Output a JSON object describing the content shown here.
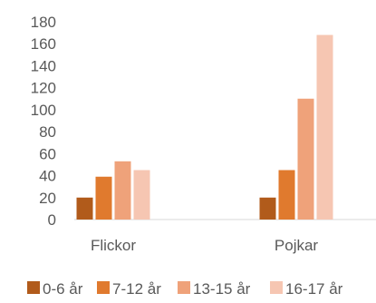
{
  "chart_data": {
    "type": "bar",
    "title": "",
    "xlabel": "",
    "ylabel": "",
    "categories": [
      "Flickor",
      "Pojkar"
    ],
    "series": [
      {
        "name": "0-6 år",
        "values": [
          20,
          20
        ],
        "color": "#b15b1b"
      },
      {
        "name": "7-12 år",
        "values": [
          39,
          45
        ],
        "color": "#e07a2e"
      },
      {
        "name": "13-15 år",
        "values": [
          53,
          110
        ],
        "color": "#efa27a"
      },
      {
        "name": "16-17 år",
        "values": [
          45,
          168
        ],
        "color": "#f6c6b2"
      }
    ],
    "ylim": [
      0,
      180
    ],
    "yticks": [
      0,
      20,
      40,
      60,
      80,
      100,
      120,
      140,
      160,
      180
    ],
    "grid": false,
    "legend_position": "bottom"
  }
}
